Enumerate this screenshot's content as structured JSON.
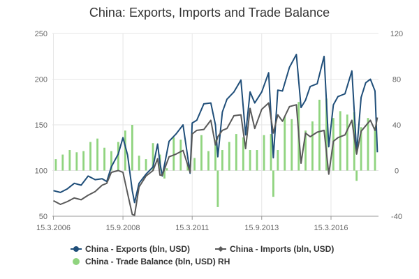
{
  "chart_data": {
    "type": "line",
    "title": "China: Exports, Imports and Trade Balance",
    "x_tick_labels": [
      "15.3.2006",
      "15.9.2008",
      "15.3.2011",
      "15.9.2013",
      "15.3.2016"
    ],
    "x_ticks": [
      "2006-03-15",
      "2008-09-15",
      "2011-03-15",
      "2013-09-15",
      "2016-03-15"
    ],
    "x_range": [
      "2006-03-01",
      "2017-11-30"
    ],
    "y_left": {
      "range": [
        50,
        250
      ],
      "ticks": [
        50,
        100,
        150,
        200,
        250
      ],
      "tick_labels": [
        "50",
        "100",
        "150",
        "200",
        "250"
      ]
    },
    "y_right": {
      "range": [
        -40,
        120
      ],
      "ticks": [
        -40,
        0,
        40,
        80,
        120
      ],
      "tick_labels": [
        "-40",
        "0",
        "40",
        "80",
        "120"
      ]
    },
    "grid": true,
    "legend_position": "bottom-center",
    "series": [
      {
        "name": "China - Exports (bln, USD)",
        "axis": "left",
        "color": "#1f4e79",
        "marker": "circle",
        "points": [
          [
            "2006-03-15",
            78
          ],
          [
            "2006-06-15",
            76
          ],
          [
            "2006-09-15",
            80
          ],
          [
            "2006-12-15",
            86
          ],
          [
            "2007-03-15",
            84
          ],
          [
            "2007-06-15",
            94
          ],
          [
            "2007-09-15",
            90
          ],
          [
            "2007-12-15",
            91
          ],
          [
            "2008-02-15",
            88
          ],
          [
            "2008-04-15",
            104
          ],
          [
            "2008-07-15",
            118
          ],
          [
            "2008-09-15",
            136
          ],
          [
            "2008-11-15",
            117
          ],
          [
            "2009-01-15",
            78
          ],
          [
            "2009-02-15",
            65
          ],
          [
            "2009-04-15",
            86
          ],
          [
            "2009-07-15",
            96
          ],
          [
            "2009-10-15",
            104
          ],
          [
            "2009-12-15",
            129
          ],
          [
            "2010-01-15",
            108
          ],
          [
            "2010-02-15",
            94
          ],
          [
            "2010-05-15",
            132
          ],
          [
            "2010-08-15",
            140
          ],
          [
            "2010-11-15",
            150
          ],
          [
            "2011-02-15",
            97
          ],
          [
            "2011-03-15",
            152
          ],
          [
            "2011-05-15",
            155
          ],
          [
            "2011-08-15",
            173
          ],
          [
            "2011-11-15",
            174
          ],
          [
            "2012-01-15",
            150
          ],
          [
            "2012-02-15",
            115
          ],
          [
            "2012-04-15",
            164
          ],
          [
            "2012-06-15",
            178
          ],
          [
            "2012-09-15",
            186
          ],
          [
            "2012-12-15",
            199
          ],
          [
            "2013-02-15",
            139
          ],
          [
            "2013-04-15",
            186
          ],
          [
            "2013-06-15",
            174
          ],
          [
            "2013-09-15",
            186
          ],
          [
            "2013-12-15",
            207
          ],
          [
            "2014-02-15",
            114
          ],
          [
            "2014-04-15",
            188
          ],
          [
            "2014-06-15",
            187
          ],
          [
            "2014-09-15",
            213
          ],
          [
            "2014-12-15",
            227
          ],
          [
            "2015-02-15",
            169
          ],
          [
            "2015-04-15",
            177
          ],
          [
            "2015-06-15",
            192
          ],
          [
            "2015-09-15",
            195
          ],
          [
            "2015-12-15",
            225
          ],
          [
            "2016-02-15",
            126
          ],
          [
            "2016-04-15",
            172
          ],
          [
            "2016-06-15",
            181
          ],
          [
            "2016-09-15",
            184
          ],
          [
            "2016-12-15",
            209
          ],
          [
            "2017-02-15",
            120
          ],
          [
            "2017-04-15",
            180
          ],
          [
            "2017-06-15",
            196
          ],
          [
            "2017-08-15",
            200
          ],
          [
            "2017-10-15",
            187
          ],
          [
            "2017-11-15",
            120
          ]
        ]
      },
      {
        "name": "China - Imports (bln, USD)",
        "axis": "left",
        "color": "#595959",
        "marker": "diamond",
        "points": [
          [
            "2006-03-15",
            67
          ],
          [
            "2006-06-15",
            63
          ],
          [
            "2006-09-15",
            66
          ],
          [
            "2006-12-15",
            70
          ],
          [
            "2007-03-15",
            68
          ],
          [
            "2007-06-15",
            73
          ],
          [
            "2007-09-15",
            77
          ],
          [
            "2007-12-15",
            84
          ],
          [
            "2008-02-15",
            86
          ],
          [
            "2008-04-15",
            98
          ],
          [
            "2008-07-15",
            100
          ],
          [
            "2008-09-15",
            98
          ],
          [
            "2008-11-15",
            75
          ],
          [
            "2009-01-15",
            52
          ],
          [
            "2009-02-15",
            51
          ],
          [
            "2009-04-15",
            82
          ],
          [
            "2009-07-15",
            94
          ],
          [
            "2009-10-15",
            100
          ],
          [
            "2009-12-15",
            113
          ],
          [
            "2010-01-15",
            95
          ],
          [
            "2010-02-15",
            95
          ],
          [
            "2010-05-15",
            115
          ],
          [
            "2010-08-15",
            118
          ],
          [
            "2010-11-15",
            122
          ],
          [
            "2011-02-15",
            98
          ],
          [
            "2011-03-15",
            140
          ],
          [
            "2011-05-15",
            144
          ],
          [
            "2011-08-15",
            145
          ],
          [
            "2011-11-15",
            155
          ],
          [
            "2012-01-15",
            128
          ],
          [
            "2012-02-15",
            137
          ],
          [
            "2012-04-15",
            144
          ],
          [
            "2012-06-15",
            146
          ],
          [
            "2012-09-15",
            160
          ],
          [
            "2012-12-15",
            161
          ],
          [
            "2013-02-15",
            124
          ],
          [
            "2013-04-15",
            168
          ],
          [
            "2013-06-15",
            146
          ],
          [
            "2013-09-15",
            167
          ],
          [
            "2013-12-15",
            174
          ],
          [
            "2014-02-15",
            141
          ],
          [
            "2014-04-15",
            161
          ],
          [
            "2014-06-15",
            154
          ],
          [
            "2014-09-15",
            170
          ],
          [
            "2014-12-15",
            172
          ],
          [
            "2015-02-15",
            108
          ],
          [
            "2015-04-15",
            141
          ],
          [
            "2015-06-15",
            137
          ],
          [
            "2015-09-15",
            142
          ],
          [
            "2015-12-15",
            144
          ],
          [
            "2016-02-15",
            96
          ],
          [
            "2016-04-15",
            132
          ],
          [
            "2016-06-15",
            136
          ],
          [
            "2016-09-15",
            139
          ],
          [
            "2016-12-15",
            155
          ],
          [
            "2017-02-15",
            118
          ],
          [
            "2017-04-15",
            143
          ],
          [
            "2017-06-15",
            149
          ],
          [
            "2017-08-15",
            155
          ],
          [
            "2017-10-15",
            144
          ],
          [
            "2017-11-15",
            158
          ]
        ]
      },
      {
        "name": "China - Trade Balance (bln, USD) RH",
        "axis": "right",
        "type": "bar",
        "color": "#90d47f",
        "points": [
          [
            "2006-04-15",
            10
          ],
          [
            "2006-07-15",
            14
          ],
          [
            "2006-10-15",
            18
          ],
          [
            "2007-01-15",
            16
          ],
          [
            "2007-04-15",
            17
          ],
          [
            "2007-07-15",
            25
          ],
          [
            "2007-10-15",
            28
          ],
          [
            "2008-01-15",
            20
          ],
          [
            "2008-04-15",
            17
          ],
          [
            "2008-07-15",
            25
          ],
          [
            "2008-10-15",
            35
          ],
          [
            "2009-01-15",
            40
          ],
          [
            "2009-04-15",
            13
          ],
          [
            "2009-07-15",
            10
          ],
          [
            "2009-10-15",
            24
          ],
          [
            "2010-01-15",
            14
          ],
          [
            "2010-04-15",
            2
          ],
          [
            "2010-07-15",
            29
          ],
          [
            "2010-10-15",
            27
          ],
          [
            "2011-01-15",
            6
          ],
          [
            "2011-04-15",
            11
          ],
          [
            "2011-07-15",
            31
          ],
          [
            "2011-10-15",
            17
          ],
          [
            "2012-01-15",
            27
          ],
          [
            "2012-04-15",
            18
          ],
          [
            "2012-07-15",
            25
          ],
          [
            "2012-10-15",
            32
          ],
          [
            "2013-01-15",
            29
          ],
          [
            "2013-04-15",
            18
          ],
          [
            "2013-07-15",
            18
          ],
          [
            "2013-10-15",
            31
          ],
          [
            "2014-01-15",
            32
          ],
          [
            "2014-04-15",
            18
          ],
          [
            "2014-07-15",
            47
          ],
          [
            "2014-10-15",
            45
          ],
          [
            "2015-01-15",
            60
          ],
          [
            "2015-04-15",
            35
          ],
          [
            "2015-07-15",
            43
          ],
          [
            "2015-10-15",
            62
          ],
          [
            "2016-01-15",
            63
          ],
          [
            "2016-04-15",
            46
          ],
          [
            "2016-07-15",
            52
          ],
          [
            "2016-10-15",
            49
          ],
          [
            "2017-01-15",
            51
          ],
          [
            "2017-04-15",
            38
          ],
          [
            "2017-07-15",
            46
          ],
          [
            "2017-10-15",
            38
          ],
          [
            "2010-03-15",
            -7
          ],
          [
            "2012-02-15",
            -32
          ],
          [
            "2014-02-15",
            -23
          ],
          [
            "2016-02-15",
            -1
          ],
          [
            "2017-02-15",
            -9
          ]
        ]
      }
    ]
  }
}
